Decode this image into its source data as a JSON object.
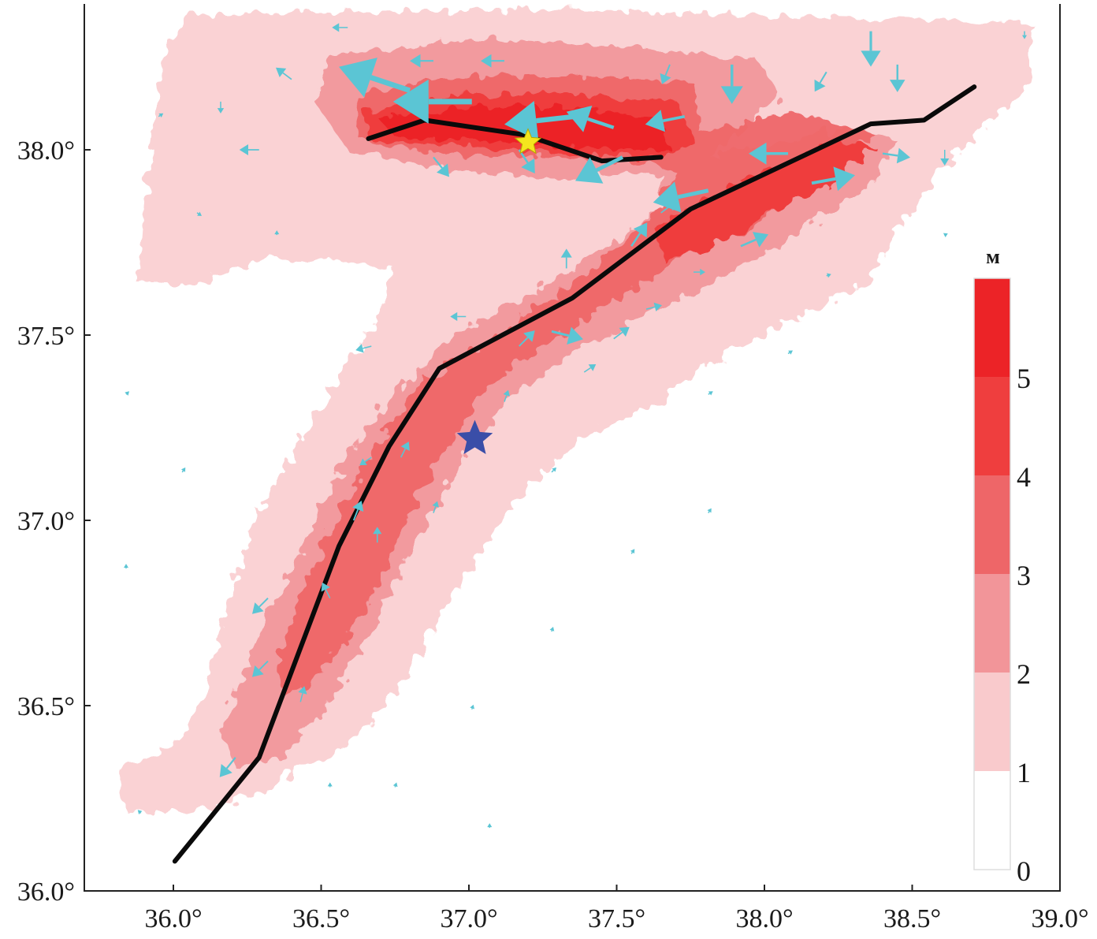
{
  "chart_data": {
    "type": "map",
    "title": "",
    "xlim": [
      35.7,
      39.0
    ],
    "ylim": [
      36.0,
      38.4
    ],
    "x_ticks": [
      36.0,
      36.5,
      37.0,
      37.5,
      38.0,
      38.5,
      39.0
    ],
    "x_tick_labels": [
      "36.0°",
      "36.5°",
      "37.0°",
      "37.5°",
      "38.0°",
      "38.5°",
      "39.0°"
    ],
    "y_ticks": [
      36.0,
      36.5,
      37.0,
      37.5,
      38.0
    ],
    "y_tick_labels": [
      "36.0°",
      "36.5°",
      "37.0°",
      "37.5°",
      "38.0°"
    ],
    "colorbar": {
      "title": "м",
      "tick_labels": [
        "0",
        "1",
        "2",
        "3",
        "4",
        "5"
      ],
      "bins": [
        {
          "range": [
            0,
            1
          ],
          "color": "#ffffff"
        },
        {
          "range": [
            1,
            2
          ],
          "color": "#f9cacc"
        },
        {
          "range": [
            2,
            3
          ],
          "color": "#f29599"
        },
        {
          "range": [
            3,
            4
          ],
          "color": "#ee6668"
        },
        {
          "range": [
            4,
            5
          ],
          "color": "#ef3e3e"
        },
        {
          "range": [
            5,
            6
          ],
          "color": "#ec2327"
        }
      ]
    },
    "faults": [
      {
        "name": "main-fault",
        "points": [
          [
            36.005,
            36.08
          ],
          [
            36.29,
            36.36
          ],
          [
            36.56,
            36.93
          ],
          [
            36.73,
            37.2
          ],
          [
            36.9,
            37.41
          ],
          [
            37.35,
            37.6
          ],
          [
            37.75,
            37.84
          ],
          [
            38.36,
            38.07
          ],
          [
            38.54,
            38.08
          ],
          [
            38.71,
            38.17
          ]
        ]
      },
      {
        "name": "northern-fault",
        "points": [
          [
            36.66,
            38.03
          ],
          [
            36.85,
            38.08
          ],
          [
            37.19,
            38.04
          ],
          [
            37.45,
            37.97
          ],
          [
            37.65,
            37.98
          ]
        ]
      }
    ],
    "epicenters": [
      {
        "name": "yellow-star",
        "lon": 37.2,
        "lat": 38.02,
        "color": "#f5e61e"
      },
      {
        "name": "blue-star",
        "lon": 37.02,
        "lat": 37.22,
        "color": "#3a4ea8"
      }
    ],
    "arrow_color": "#5bc5d4",
    "displacement_vectors_m": [
      [
        36.8,
        38.16,
        -4.5,
        1.5
      ],
      [
        37.01,
        38.13,
        -5,
        0
      ],
      [
        37.36,
        38.09,
        -4.5,
        -0.5
      ],
      [
        37.49,
        38.06,
        -3,
        1
      ],
      [
        37.73,
        38.09,
        -2.5,
        -0.5
      ],
      [
        37.52,
        37.98,
        -3,
        -1.5
      ],
      [
        37.17,
        38.0,
        1,
        -1.5
      ],
      [
        36.88,
        37.98,
        1,
        -1.25
      ],
      [
        37.81,
        37.89,
        -3.5,
        -0.75
      ],
      [
        37.89,
        38.23,
        0,
        -2.5
      ],
      [
        38.36,
        38.32,
        0,
        -2.25
      ],
      [
        38.45,
        38.23,
        0,
        -1.75
      ],
      [
        38.08,
        37.99,
        -2.5,
        0
      ],
      [
        38.16,
        37.91,
        2.75,
        0.5
      ],
      [
        38.4,
        37.99,
        1.75,
        -0.25
      ],
      [
        37.92,
        37.74,
        1.75,
        0.75
      ],
      [
        37.55,
        37.74,
        1,
        1.5
      ],
      [
        37.33,
        37.68,
        0,
        1.25
      ],
      [
        37.28,
        37.51,
        2,
        -0.5
      ],
      [
        37.17,
        37.47,
        1,
        1
      ],
      [
        37.49,
        37.49,
        1,
        0.75
      ],
      [
        37.6,
        37.57,
        1,
        0.25
      ],
      [
        37.76,
        37.67,
        0.75,
        0
      ],
      [
        36.99,
        37.55,
        -1,
        0
      ],
      [
        36.67,
        37.47,
        -1,
        -0.25
      ],
      [
        36.67,
        37.17,
        -0.75,
        -0.5
      ],
      [
        36.77,
        37.17,
        0.5,
        1
      ],
      [
        36.61,
        37.0,
        0.5,
        1.25
      ],
      [
        36.69,
        36.94,
        0,
        1
      ],
      [
        36.53,
        36.79,
        -0.5,
        1
      ],
      [
        36.32,
        36.79,
        -1,
        -1
      ],
      [
        36.32,
        36.62,
        -1,
        -1
      ],
      [
        36.21,
        36.36,
        -1,
        -1.25
      ],
      [
        36.43,
        36.51,
        0.25,
        1
      ],
      [
        36.88,
        37.02,
        0.25,
        0.75
      ],
      [
        37.12,
        37.32,
        0.25,
        0.75
      ],
      [
        37.39,
        37.4,
        0.75,
        0.5
      ],
      [
        36.29,
        38.0,
        -1.25,
        0
      ],
      [
        36.4,
        38.19,
        -1,
        0.75
      ],
      [
        36.16,
        38.13,
        0,
        -0.75
      ],
      [
        37.12,
        38.24,
        -1.5,
        0
      ],
      [
        36.88,
        38.24,
        -1.5,
        0
      ],
      [
        36.59,
        38.33,
        -1,
        0
      ],
      [
        37.68,
        38.23,
        -0.5,
        -1.25
      ],
      [
        38.21,
        38.21,
        -0.75,
        -1.25
      ],
      [
        38.61,
        38.0,
        0,
        -1
      ],
      [
        38.88,
        38.32,
        0,
        -0.5
      ],
      [
        37.65,
        37.83,
        1,
        0.75
      ],
      [
        35.95,
        38.09,
        0.3,
        0.2
      ],
      [
        36.08,
        37.83,
        0.3,
        -0.2
      ],
      [
        36.35,
        37.77,
        0,
        0.3
      ],
      [
        35.84,
        37.34,
        0.2,
        0.2
      ],
      [
        36.03,
        37.13,
        0.2,
        0.3
      ],
      [
        37.28,
        37.13,
        0.3,
        0.3
      ],
      [
        37.81,
        37.34,
        0.3,
        0.2
      ],
      [
        38.08,
        37.45,
        0.3,
        0.2
      ],
      [
        37.55,
        36.91,
        0.2,
        0.3
      ],
      [
        37.28,
        36.7,
        0.1,
        0.3
      ],
      [
        37.01,
        36.49,
        0.1,
        0.3
      ],
      [
        36.75,
        36.28,
        0.1,
        0.3
      ],
      [
        37.81,
        37.02,
        0.2,
        0.3
      ],
      [
        38.21,
        37.66,
        0.3,
        0.1
      ],
      [
        38.61,
        37.77,
        0.2,
        0.1
      ],
      [
        37.07,
        36.17,
        0,
        0.3
      ],
      [
        36.53,
        36.28,
        0,
        0.3
      ],
      [
        35.89,
        36.21,
        -0.2,
        0.2
      ],
      [
        35.84,
        36.87,
        0,
        0.3
      ]
    ]
  }
}
